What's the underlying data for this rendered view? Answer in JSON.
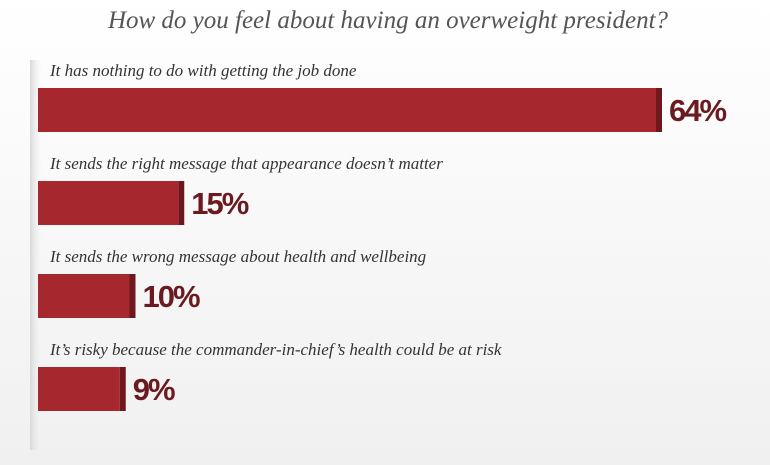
{
  "chart_data": {
    "type": "bar",
    "orientation": "horizontal",
    "title": "How do you feel about having an overweight president?",
    "categories": [
      "It has nothing to do with getting the job done",
      "It sends the right message that appearance doesn’t matter",
      "It sends the wrong message about health and wellbeing",
      "It’s risky because the commander-in-chief’s health could be at risk"
    ],
    "values": [
      64,
      15,
      10,
      9
    ],
    "value_labels": [
      "64%",
      "15%",
      "10%",
      "9%"
    ],
    "color": "#a6282e"
  }
}
